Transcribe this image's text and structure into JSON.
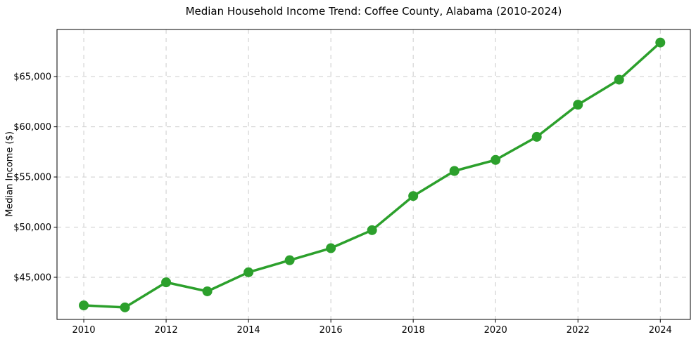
{
  "figure": {
    "title": "Median Household Income Trend: Coffee County, Alabama (2010-2024)",
    "y_axis_label": "Median Income ($)"
  },
  "chart_data": {
    "type": "line",
    "title": "Median Household Income Trend: Coffee County, Alabama (2010-2024)",
    "xlabel": "",
    "ylabel": "Median Income ($)",
    "series": [
      {
        "name": "Median household income",
        "x": [
          2010,
          2011,
          2012,
          2013,
          2014,
          2015,
          2016,
          2017,
          2018,
          2019,
          2020,
          2021,
          2022,
          2023,
          2024
        ],
        "values": [
          42200,
          42000,
          44500,
          43600,
          45500,
          46700,
          47900,
          49700,
          53100,
          55600,
          56700,
          59000,
          62200,
          64700,
          68400
        ],
        "color": "#2ca02c",
        "marker": "circle",
        "marker_radius": 7,
        "line_width": 3.5
      }
    ],
    "xlim": [
      2009.35,
      2024.73
    ],
    "ylim": [
      40800,
      69700
    ],
    "xticks": {
      "values": [
        2010,
        2012,
        2014,
        2016,
        2018,
        2020,
        2022,
        2024
      ],
      "labels": [
        "2010",
        "2012",
        "2014",
        "2016",
        "2018",
        "2020",
        "2022",
        "2024"
      ]
    },
    "yticks": {
      "values": [
        45000,
        50000,
        55000,
        60000,
        65000
      ],
      "labels": [
        "$45,000",
        "$50,000",
        "$55,000",
        "$60,000",
        "$65,000"
      ]
    },
    "grid": {
      "show": true,
      "color": "#cccccc",
      "style": "dashed"
    },
    "legend": "none",
    "axes": {
      "spine_color": "#000000",
      "tick_color": "#000000",
      "tick_label_color": "#000000"
    }
  }
}
